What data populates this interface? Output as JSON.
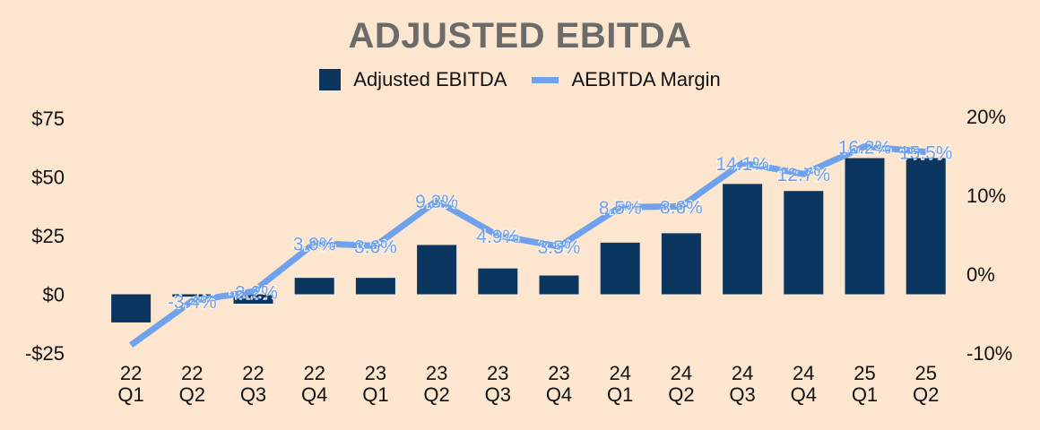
{
  "chart_data": {
    "type": "bar+line",
    "title": "ADJUSTED EBITDA",
    "categories": [
      [
        "22",
        "Q1"
      ],
      [
        "22",
        "Q2"
      ],
      [
        "22",
        "Q3"
      ],
      [
        "22",
        "Q4"
      ],
      [
        "23",
        "Q1"
      ],
      [
        "23",
        "Q2"
      ],
      [
        "23",
        "Q3"
      ],
      [
        "23",
        "Q4"
      ],
      [
        "24",
        "Q1"
      ],
      [
        "24",
        "Q2"
      ],
      [
        "24",
        "Q3"
      ],
      [
        "24",
        "Q4"
      ],
      [
        "25",
        "Q1"
      ],
      [
        "25",
        "Q2"
      ]
    ],
    "series": [
      {
        "name": "Adjusted EBITDA",
        "type": "bar",
        "axis": "left",
        "color": "#0b365f",
        "values": [
          -12,
          -1,
          -4,
          7,
          7,
          21,
          11,
          8,
          22,
          26,
          47,
          44,
          58,
          58
        ]
      },
      {
        "name": "AEBITDA Margin",
        "type": "line",
        "axis": "right",
        "color": "#6fa1ec",
        "values": [
          -9.0,
          -3.4,
          -2.2,
          3.9,
          3.6,
          9.3,
          4.9,
          3.5,
          8.5,
          8.6,
          14.1,
          12.7,
          16.2,
          15.5
        ],
        "labels": [
          "",
          "-3.4%",
          "-2.2%",
          "3.9%",
          "3.6%",
          "9.3%",
          "4.9%",
          "3.5%",
          "8.5%",
          "8.6%",
          "14.1%",
          "12.7%",
          "16.2%",
          "15.5%"
        ]
      }
    ],
    "left_axis": {
      "ylim": [
        -25,
        75
      ],
      "ticks": [
        75,
        50,
        25,
        0,
        -25
      ],
      "tick_labels": [
        "$75",
        "$50",
        "$25",
        "$0",
        "-$25"
      ]
    },
    "right_axis": {
      "ylim": [
        -10,
        20
      ],
      "ticks": [
        20,
        10,
        0,
        -10
      ],
      "tick_labels": [
        "20%",
        "10%",
        "0%",
        "-10%"
      ]
    },
    "grid": false,
    "legend_position": "top-center"
  }
}
